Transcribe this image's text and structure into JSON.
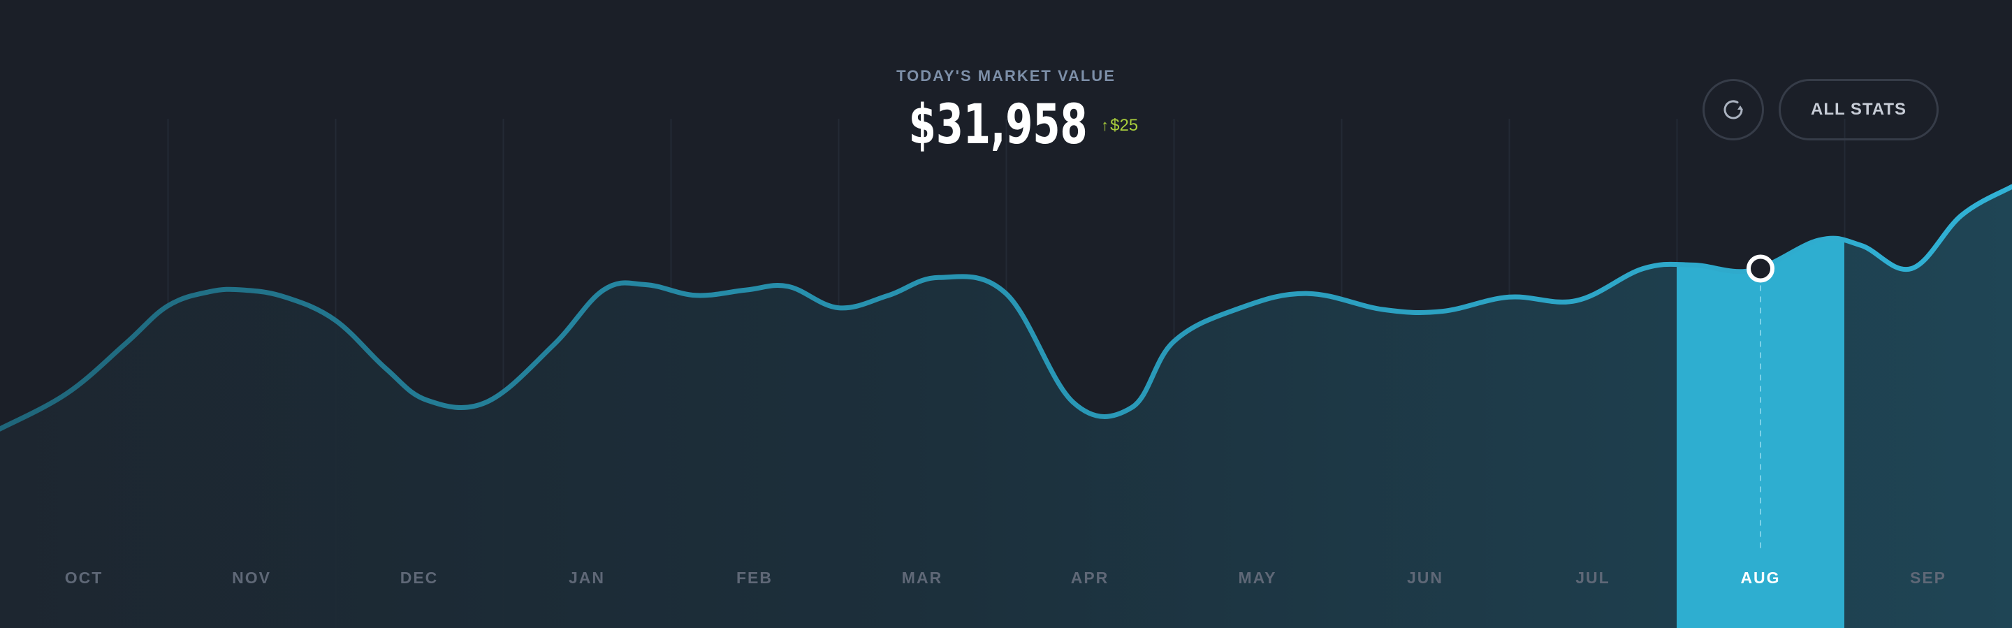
{
  "header": {
    "label": "TODAY'S MARKET VALUE",
    "value": "$31,958",
    "change_arrow": "↑",
    "change": "$25"
  },
  "buttons": {
    "refresh_icon": "refresh-icon",
    "all_stats_label": "ALL STATS"
  },
  "colors": {
    "background": "#1b1f28",
    "line": "#2fa8c9",
    "highlight": "#2eaed0",
    "change_positive": "#a8cc3c",
    "month_label": "#5f6877",
    "month_label_active": "#ffffff"
  },
  "chart_data": {
    "type": "area",
    "categories": [
      "OCT",
      "NOV",
      "DEC",
      "JAN",
      "FEB",
      "MAR",
      "APR",
      "MAY",
      "JUN",
      "JUL",
      "AUG",
      "SEP"
    ],
    "selected_category": "AUG",
    "grid": true,
    "points": [
      {
        "x": 0.0,
        "y": 0.0
      },
      {
        "x": 0.4,
        "y": 2.0
      },
      {
        "x": 0.75,
        "y": 4.8
      },
      {
        "x": 1.0,
        "y": 6.9
      },
      {
        "x": 1.25,
        "y": 7.7
      },
      {
        "x": 1.45,
        "y": 7.8
      },
      {
        "x": 1.7,
        "y": 7.4
      },
      {
        "x": 2.0,
        "y": 6.1
      },
      {
        "x": 2.3,
        "y": 3.4
      },
      {
        "x": 2.55,
        "y": 1.6
      },
      {
        "x": 2.9,
        "y": 1.5
      },
      {
        "x": 3.3,
        "y": 4.7
      },
      {
        "x": 3.6,
        "y": 7.8
      },
      {
        "x": 3.85,
        "y": 8.1
      },
      {
        "x": 4.15,
        "y": 7.5
      },
      {
        "x": 4.45,
        "y": 7.8
      },
      {
        "x": 4.7,
        "y": 8.0
      },
      {
        "x": 5.0,
        "y": 6.8
      },
      {
        "x": 5.3,
        "y": 7.5
      },
      {
        "x": 5.6,
        "y": 8.5
      },
      {
        "x": 6.0,
        "y": 7.6
      },
      {
        "x": 6.4,
        "y": 1.5
      },
      {
        "x": 6.75,
        "y": 1.2
      },
      {
        "x": 7.0,
        "y": 4.9
      },
      {
        "x": 7.4,
        "y": 6.8
      },
      {
        "x": 7.8,
        "y": 7.6
      },
      {
        "x": 8.25,
        "y": 6.7
      },
      {
        "x": 8.6,
        "y": 6.6
      },
      {
        "x": 9.0,
        "y": 7.4
      },
      {
        "x": 9.4,
        "y": 7.2
      },
      {
        "x": 9.8,
        "y": 9.0
      },
      {
        "x": 10.1,
        "y": 9.2
      },
      {
        "x": 10.45,
        "y": 8.9
      },
      {
        "x": 10.85,
        "y": 10.6
      },
      {
        "x": 11.1,
        "y": 10.3
      },
      {
        "x": 11.4,
        "y": 9.0
      },
      {
        "x": 11.7,
        "y": 12.0
      },
      {
        "x": 12.0,
        "y": 13.6
      }
    ],
    "marker": {
      "x": 10.5,
      "y": 9.0
    }
  }
}
